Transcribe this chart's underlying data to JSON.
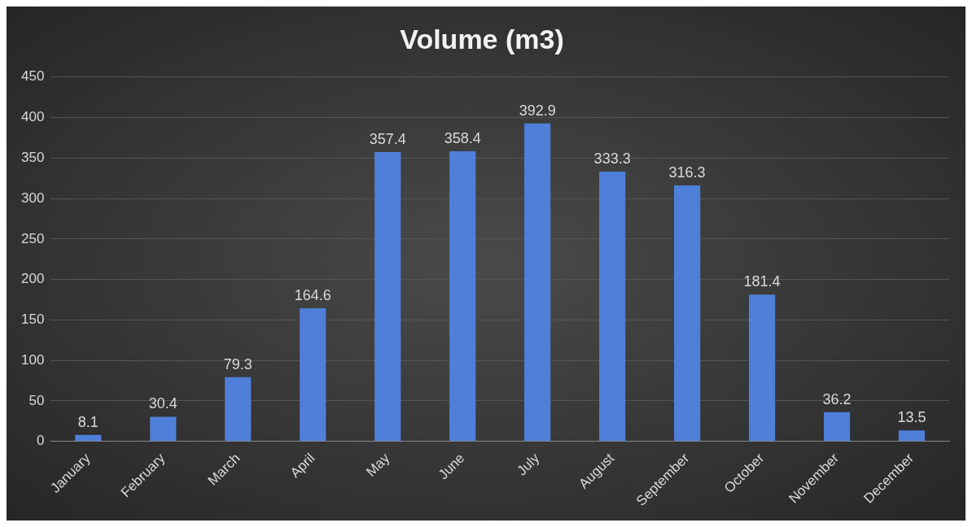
{
  "chart_data": {
    "type": "bar",
    "title": "Volume (m3)",
    "categories": [
      "January",
      "February",
      "March",
      "April",
      "May",
      "June",
      "July",
      "August",
      "September",
      "October",
      "November",
      "December"
    ],
    "values": [
      8.1,
      30.4,
      79.3,
      164.6,
      357.4,
      358.4,
      392.9,
      333.3,
      316.3,
      181.4,
      36.2,
      13.5
    ],
    "color": "#4f7fd8",
    "ylim": [
      0,
      450
    ],
    "yticks": [
      0,
      50,
      100,
      150,
      200,
      250,
      300,
      350,
      400,
      450
    ],
    "grid": "y",
    "data_labels": true,
    "legend": false
  }
}
